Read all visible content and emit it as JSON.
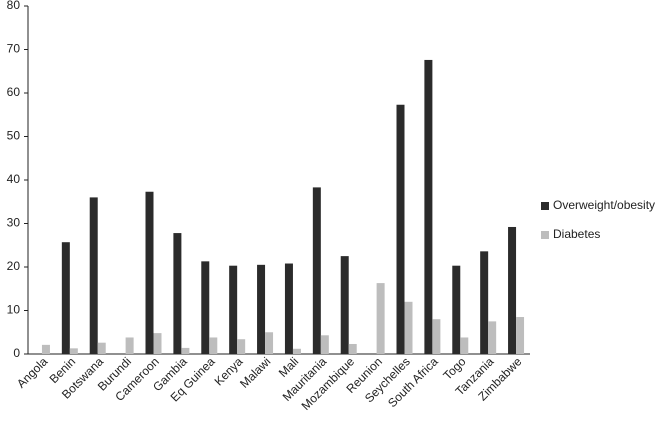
{
  "chart_data": {
    "type": "bar",
    "categories": [
      "Angola",
      "Benin",
      "Botswana",
      "Burundi",
      "Cameroon",
      "Gambia",
      "Eq Guinea",
      "Kenya",
      "Malawi",
      "Mali",
      "Mauritania",
      "Mozambique",
      "Reunion",
      "Seychelles",
      "South Africa",
      "Togo",
      "Tanzania",
      "Zimbabwe"
    ],
    "series": [
      {
        "name": "Overweight/obesity",
        "color": "#2b2b2b",
        "values": [
          null,
          25.7,
          36,
          null,
          37.3,
          27.8,
          21.3,
          20.3,
          20.5,
          20.8,
          38.3,
          22.5,
          null,
          57.3,
          67.6,
          20.3,
          23.6,
          29.2
        ]
      },
      {
        "name": "Diabetes",
        "color": "#bdbdbd",
        "values": [
          2.1,
          1.3,
          2.6,
          3.8,
          4.8,
          1.4,
          3.8,
          3.4,
          5,
          1.2,
          4.3,
          2.3,
          16.3,
          12,
          8,
          3.8,
          7.5,
          8.5
        ]
      }
    ],
    "ylim": [
      0,
      80
    ],
    "yticks": [
      0,
      10,
      20,
      30,
      40,
      50,
      60,
      70,
      80
    ],
    "grid": false,
    "legend": "right"
  }
}
